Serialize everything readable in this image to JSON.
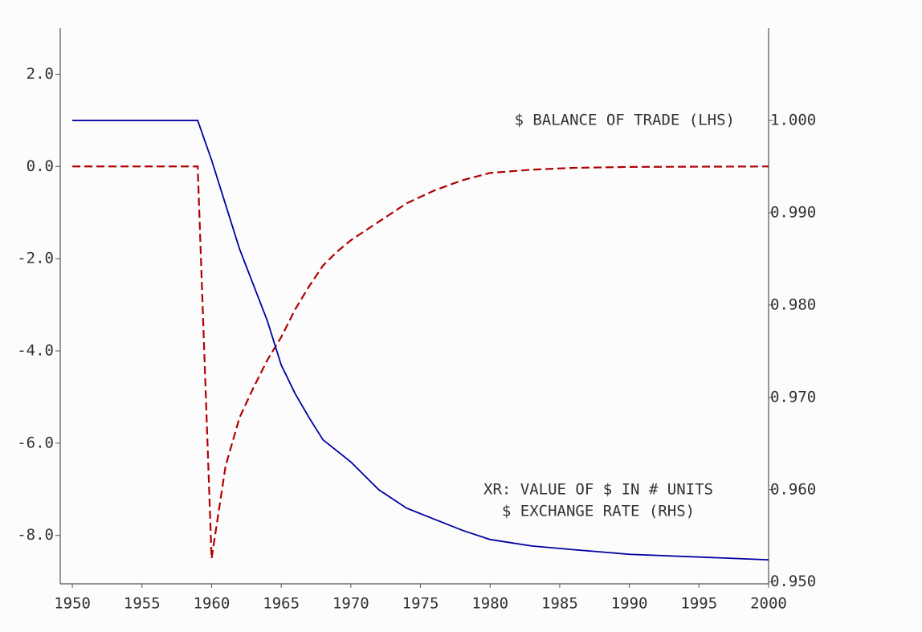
{
  "chart_data": {
    "type": "line",
    "x": [
      1950,
      1959,
      1960,
      1961,
      1962,
      1963,
      1964,
      1965,
      1966,
      1967,
      1968,
      1969,
      1970,
      1972,
      1974,
      1976,
      1978,
      1980,
      1983,
      1986,
      1990,
      2000
    ],
    "series": [
      {
        "color": "#b00000",
        "dash": true,
        "values": [
          0,
          0,
          -8.5,
          -6.5,
          -5.45,
          -4.8,
          -4.2,
          -3.7,
          -3.1,
          -2.6,
          -2.15,
          -1.85,
          -1.6,
          -1.2,
          -0.8,
          -0.52,
          -0.3,
          -0.14,
          -0.07,
          -0.03,
          -0.01,
          0
        ]
      },
      {
        "color": "#0000a0",
        "dash": false,
        "axis": "y2",
        "values": [
          1.0,
          1.0,
          0.9957,
          0.9909,
          0.9861,
          0.9822,
          0.9783,
          0.9735,
          0.9704,
          0.9678,
          0.9654,
          0.9642,
          0.963,
          0.96,
          0.958,
          0.9568,
          0.9556,
          0.9546,
          0.9539,
          0.9535,
          0.953,
          0.9524
        ]
      }
    ],
    "annotations": [
      "$ BALANCE OF TRADE (LHS)",
      "XR: VALUE OF $ IN # UNITS",
      "$ EXCHANGE RATE (RHS)"
    ],
    "xlim": [
      1949.13,
      2000
    ],
    "xticks": [
      1950,
      1955,
      1960,
      1965,
      1970,
      1975,
      1980,
      1985,
      1990,
      1995,
      2000
    ],
    "ylim": [
      -9.05,
      3.0
    ],
    "yticks": [
      {
        "value": 2,
        "label": "2.0"
      },
      {
        "value": 0,
        "label": "0.0"
      },
      {
        "value": -2,
        "label": "-2.0"
      },
      {
        "value": -4,
        "label": "-4.0"
      },
      {
        "value": -6,
        "label": "-6.0"
      },
      {
        "value": -8,
        "label": "-8.0"
      }
    ],
    "y2lim": [
      0.9498,
      1.01
    ],
    "y2ticks": [
      {
        "value": 1.0,
        "label": "1.000"
      },
      {
        "value": 0.99,
        "label": "0.990"
      },
      {
        "value": 0.98,
        "label": "0.980"
      },
      {
        "value": 0.97,
        "label": "0.970"
      },
      {
        "value": 0.96,
        "label": "0.960"
      },
      {
        "value": 0.95,
        "label": "0.950"
      }
    ]
  }
}
